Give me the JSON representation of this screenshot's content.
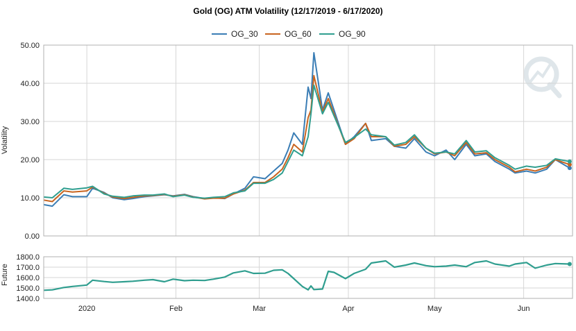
{
  "colors": {
    "og30": "#3a7db5",
    "og60": "#c8641f",
    "og90": "#2f9e8f",
    "future": "#2f9e8f",
    "grid": "#d6d6d6",
    "watermark": "#dfe6ea"
  },
  "logo": {
    "icon": "quiz-q-watermark-icon"
  },
  "chart_data": [
    {
      "type": "line",
      "title": "Gold (OG) ATM Volatility (12/17/2019 - 6/17/2020)",
      "ylabel": "Volatility",
      "xlabel": "",
      "ylim": [
        0,
        50
      ],
      "yticks": [
        "0.00",
        "10.00",
        "20.00",
        "30.00",
        "40.00",
        "50.00"
      ],
      "grid": true,
      "legend": "top-center",
      "x_dates": [
        "2019-12-17",
        "2019-12-20",
        "2019-12-24",
        "2019-12-27",
        "2020-01-01",
        "2020-01-03",
        "2020-01-07",
        "2020-01-10",
        "2020-01-14",
        "2020-01-17",
        "2020-01-21",
        "2020-01-24",
        "2020-01-28",
        "2020-01-31",
        "2020-02-04",
        "2020-02-07",
        "2020-02-11",
        "2020-02-14",
        "2020-02-18",
        "2020-02-21",
        "2020-02-25",
        "2020-02-28",
        "2020-03-03",
        "2020-03-06",
        "2020-03-09",
        "2020-03-11",
        "2020-03-13",
        "2020-03-16",
        "2020-03-18",
        "2020-03-19",
        "2020-03-20",
        "2020-03-23",
        "2020-03-25",
        "2020-03-27",
        "2020-03-31",
        "2020-04-03",
        "2020-04-07",
        "2020-04-09",
        "2020-04-14",
        "2020-04-17",
        "2020-04-21",
        "2020-04-24",
        "2020-04-28",
        "2020-05-01",
        "2020-05-05",
        "2020-05-08",
        "2020-05-12",
        "2020-05-15",
        "2020-05-19",
        "2020-05-22",
        "2020-05-27",
        "2020-05-29",
        "2020-06-02",
        "2020-06-05",
        "2020-06-09",
        "2020-06-12",
        "2020-06-17"
      ],
      "series": [
        {
          "name": "OG_30",
          "values": [
            8.2,
            7.8,
            10.8,
            10.3,
            10.3,
            12.5,
            11.4,
            10.0,
            9.5,
            9.8,
            10.3,
            10.5,
            10.8,
            10.5,
            10.9,
            10.3,
            9.8,
            10.0,
            9.8,
            11.0,
            12.5,
            15.5,
            15.0,
            17.0,
            19.0,
            22.5,
            27.0,
            24.0,
            39.0,
            36.0,
            48.0,
            33.0,
            37.5,
            33.0,
            24.0,
            26.0,
            29.5,
            25.0,
            25.5,
            23.5,
            23.0,
            25.5,
            22.0,
            21.0,
            22.5,
            20.0,
            24.0,
            21.0,
            21.5,
            19.5,
            17.5,
            16.5,
            17.0,
            16.5,
            17.5,
            20.0,
            17.8
          ]
        },
        {
          "name": "OG_60",
          "values": [
            9.4,
            9.0,
            11.8,
            11.5,
            11.8,
            12.8,
            11.2,
            10.2,
            9.8,
            10.1,
            10.5,
            10.6,
            10.9,
            10.4,
            10.8,
            10.2,
            9.7,
            9.9,
            9.9,
            11.0,
            12.0,
            14.0,
            14.0,
            15.5,
            17.5,
            20.5,
            24.0,
            22.0,
            31.0,
            33.0,
            42.0,
            32.5,
            36.0,
            32.0,
            24.0,
            25.5,
            29.5,
            26.0,
            26.0,
            23.5,
            24.0,
            26.0,
            23.0,
            21.5,
            22.0,
            21.0,
            24.5,
            21.5,
            21.8,
            20.0,
            18.0,
            16.8,
            17.5,
            17.0,
            18.0,
            20.0,
            18.7
          ]
        },
        {
          "name": "OG_90",
          "values": [
            10.2,
            10.0,
            12.5,
            12.2,
            12.6,
            13.0,
            11.0,
            10.4,
            10.1,
            10.5,
            10.7,
            10.7,
            11.0,
            10.3,
            10.7,
            10.1,
            9.9,
            10.1,
            10.3,
            11.3,
            11.8,
            13.8,
            13.8,
            14.8,
            16.5,
            19.5,
            22.5,
            21.0,
            26.0,
            32.0,
            39.5,
            32.0,
            35.0,
            31.5,
            24.5,
            25.8,
            28.0,
            26.5,
            26.0,
            23.8,
            24.5,
            26.5,
            23.0,
            21.7,
            22.0,
            21.5,
            25.0,
            22.0,
            22.3,
            20.5,
            18.5,
            17.5,
            18.3,
            18.0,
            18.5,
            20.2,
            19.5
          ]
        }
      ]
    },
    {
      "type": "line",
      "title": "",
      "ylabel": "Future",
      "xlabel": "",
      "ylim": [
        1400,
        1800
      ],
      "yticks": [
        "1400.0",
        "1500.0",
        "1600.0",
        "1700.0",
        "1800.0"
      ],
      "xticks": [
        {
          "label": "2020",
          "date": "2020-01-01"
        },
        {
          "label": "Feb",
          "date": "2020-02-01"
        },
        {
          "label": "Mar",
          "date": "2020-03-01"
        },
        {
          "label": "Apr",
          "date": "2020-04-01"
        },
        {
          "label": "May",
          "date": "2020-05-01"
        },
        {
          "label": "Jun",
          "date": "2020-06-01"
        }
      ],
      "grid": true,
      "series": [
        {
          "name": "",
          "values": [
            1478,
            1482,
            1505,
            1515,
            1528,
            1575,
            1562,
            1555,
            1560,
            1565,
            1575,
            1580,
            1560,
            1585,
            1570,
            1575,
            1572,
            1585,
            1605,
            1645,
            1665,
            1640,
            1642,
            1670,
            1675,
            1640,
            1590,
            1515,
            1482,
            1520,
            1485,
            1490,
            1660,
            1650,
            1590,
            1640,
            1680,
            1740,
            1760,
            1700,
            1720,
            1740,
            1715,
            1705,
            1710,
            1720,
            1705,
            1745,
            1760,
            1730,
            1710,
            1730,
            1745,
            1690,
            1720,
            1735,
            1730
          ]
        }
      ]
    }
  ]
}
